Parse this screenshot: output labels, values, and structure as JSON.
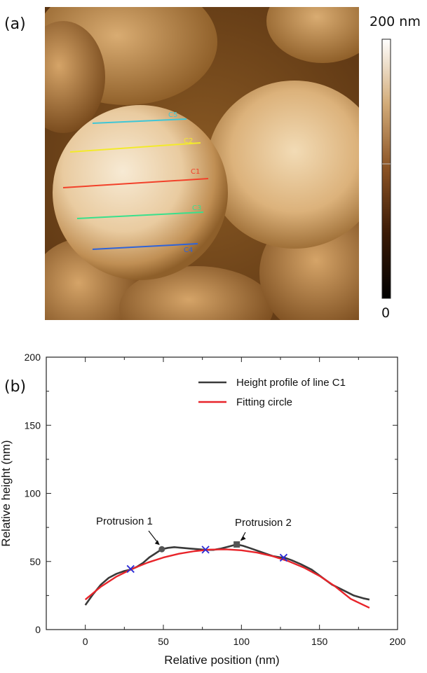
{
  "panel_a": {
    "label": "(a)",
    "colorbar": {
      "max_label": "200 nm",
      "min_label": "0"
    },
    "lines": [
      {
        "id": "C5",
        "color": "#3fc6d6"
      },
      {
        "id": "C2",
        "color": "#f3ea2a"
      },
      {
        "id": "C1",
        "color": "#f2412a"
      },
      {
        "id": "C3",
        "color": "#39e08c"
      },
      {
        "id": "C4",
        "color": "#2f63d8"
      }
    ]
  },
  "panel_b": {
    "label": "(b)",
    "annotations": [
      {
        "text": "Protrusion 1",
        "x": 49,
        "y": 59
      },
      {
        "text": "Protrusion 2",
        "x": 97,
        "y": 62.5
      }
    ]
  },
  "chart_data": {
    "type": "line",
    "title": "",
    "xlabel": "Relative position (nm)",
    "ylabel": "Relative height (nm)",
    "xlim": [
      -25,
      200
    ],
    "ylim": [
      0,
      200
    ],
    "xticks": [
      0,
      50,
      100,
      150,
      200
    ],
    "yticks": [
      0,
      50,
      100,
      150,
      200
    ],
    "legend_position": "top-right",
    "grid": false,
    "series": [
      {
        "name": "Height profile of line C1",
        "color": "#3a3a3a",
        "x": [
          0,
          5,
          10,
          15,
          20,
          25,
          29,
          33,
          37,
          41,
          45,
          49,
          53,
          57,
          62,
          67,
          72,
          77,
          82,
          87,
          92,
          97,
          101,
          105,
          110,
          115,
          120,
          125,
          127,
          132,
          138,
          145,
          152,
          158,
          165,
          172,
          178,
          182
        ],
        "y": [
          18,
          26,
          33,
          38,
          41,
          43,
          44,
          46,
          49,
          53,
          56,
          59,
          60,
          60.5,
          60,
          59.5,
          59,
          58.5,
          58.5,
          59.5,
          61,
          62.5,
          61.5,
          60,
          58,
          56,
          54,
          53,
          53,
          51,
          48,
          44,
          38,
          33,
          29,
          25,
          23,
          22
        ]
      },
      {
        "name": "Fitting circle",
        "color": "#e8242a",
        "x": [
          0,
          10,
          20,
          30,
          40,
          50,
          60,
          70,
          80,
          90,
          100,
          110,
          120,
          130,
          140,
          150,
          160,
          170,
          182
        ],
        "y": [
          22,
          31.5,
          38.9,
          44.6,
          49.2,
          52.9,
          55.7,
          57.6,
          58.7,
          58.9,
          58.2,
          56.5,
          53.9,
          50.3,
          45.5,
          39.4,
          31.7,
          22.5,
          16
        ]
      }
    ],
    "markers": [
      {
        "x": 29,
        "y": 44.5,
        "shape": "cross",
        "color": "#2b2bd6"
      },
      {
        "x": 77,
        "y": 58.7,
        "shape": "cross",
        "color": "#2b2bd6"
      },
      {
        "x": 127,
        "y": 52.8,
        "shape": "cross",
        "color": "#2b2bd6"
      },
      {
        "x": 49,
        "y": 59,
        "shape": "circle",
        "color": "#555555"
      },
      {
        "x": 97,
        "y": 62.5,
        "shape": "square",
        "color": "#555555"
      }
    ]
  }
}
